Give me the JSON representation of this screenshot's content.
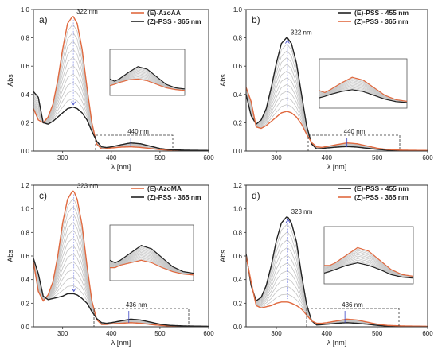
{
  "figure": {
    "colors": {
      "initial": "#e0693f",
      "final": "#222222",
      "intermediate": "#c4c4c4",
      "arrow": "#3b45c4"
    }
  },
  "chart_data": [
    {
      "type": "line",
      "panel_label": "a)",
      "xlabel": "λ [nm]",
      "ylabel": "Abs",
      "xlim": [
        240,
        600
      ],
      "ylim": [
        0,
        1.0
      ],
      "xticks": [
        "300",
        "400",
        "500",
        "600"
      ],
      "yticks": [
        "0.0",
        "0.2",
        "0.4",
        "0.6",
        "0.8",
        "1.0"
      ],
      "legend": "top-right",
      "peak_label": "322 nm",
      "peak_x": 322,
      "band_label": "440 nm",
      "band_x": 440,
      "n_intermediate": 10,
      "series": [
        {
          "name": "(E)-AzoAA",
          "role": "initial",
          "x": [
            240,
            250,
            260,
            270,
            280,
            290,
            300,
            310,
            320,
            322,
            330,
            340,
            350,
            360,
            370,
            380,
            390,
            400,
            420,
            440,
            460,
            480,
            500,
            520,
            550,
            600
          ],
          "values": [
            0.3,
            0.22,
            0.2,
            0.24,
            0.33,
            0.5,
            0.72,
            0.9,
            0.95,
            0.95,
            0.9,
            0.72,
            0.45,
            0.2,
            0.05,
            0.015,
            0.018,
            0.022,
            0.028,
            0.03,
            0.026,
            0.018,
            0.01,
            0.006,
            0.003,
            0.002
          ]
        },
        {
          "name": "(Z)-PSS - 365 nm",
          "role": "final",
          "x": [
            240,
            250,
            260,
            270,
            280,
            290,
            300,
            310,
            320,
            322,
            330,
            340,
            350,
            360,
            370,
            380,
            390,
            400,
            420,
            440,
            460,
            480,
            500,
            520,
            550,
            600
          ],
          "values": [
            0.42,
            0.38,
            0.2,
            0.19,
            0.21,
            0.24,
            0.27,
            0.3,
            0.31,
            0.31,
            0.3,
            0.27,
            0.22,
            0.14,
            0.07,
            0.03,
            0.025,
            0.03,
            0.045,
            0.058,
            0.052,
            0.035,
            0.018,
            0.01,
            0.006,
            0.004
          ]
        }
      ],
      "inset": {
        "xlim": [
          380,
          540
        ],
        "ylim": [
          0,
          0.09
        ]
      }
    },
    {
      "type": "line",
      "panel_label": "b)",
      "xlabel": "λ [nm]",
      "ylabel": "Abs",
      "xlim": [
        240,
        600
      ],
      "ylim": [
        0,
        1.0
      ],
      "xticks": [
        "300",
        "400",
        "500",
        "600"
      ],
      "yticks": [
        "0.0",
        "0.2",
        "0.4",
        "0.6",
        "0.8",
        "1.0"
      ],
      "legend": "top-right",
      "peak_label": "322 nm",
      "peak_x": 322,
      "band_label": "440 nm",
      "band_x": 440,
      "n_intermediate": 10,
      "series": [
        {
          "name": "(E)-PSS - 455 nm",
          "role": "final",
          "x": [
            240,
            250,
            260,
            270,
            280,
            290,
            300,
            310,
            320,
            322,
            330,
            340,
            350,
            360,
            370,
            380,
            390,
            400,
            420,
            440,
            460,
            480,
            500,
            520,
            550,
            600
          ],
          "values": [
            0.4,
            0.25,
            0.19,
            0.22,
            0.3,
            0.45,
            0.62,
            0.76,
            0.8,
            0.8,
            0.76,
            0.62,
            0.4,
            0.18,
            0.05,
            0.015,
            0.018,
            0.022,
            0.028,
            0.032,
            0.028,
            0.02,
            0.012,
            0.007,
            0.004,
            0.002
          ]
        },
        {
          "name": "(Z)-PSS - 365 nm",
          "role": "initial",
          "x": [
            240,
            250,
            260,
            270,
            280,
            290,
            300,
            310,
            320,
            322,
            330,
            340,
            350,
            360,
            370,
            380,
            390,
            400,
            420,
            440,
            460,
            480,
            500,
            520,
            550,
            600
          ],
          "values": [
            0.45,
            0.35,
            0.17,
            0.16,
            0.18,
            0.21,
            0.24,
            0.27,
            0.28,
            0.28,
            0.27,
            0.24,
            0.19,
            0.12,
            0.06,
            0.03,
            0.026,
            0.032,
            0.046,
            0.058,
            0.052,
            0.036,
            0.02,
            0.011,
            0.006,
            0.004
          ]
        }
      ],
      "inset": {
        "xlim": [
          380,
          540
        ],
        "ylim": [
          0,
          0.09
        ]
      }
    },
    {
      "type": "line",
      "panel_label": "c)",
      "xlabel": "λ [nm]",
      "ylabel": "Abs",
      "xlim": [
        240,
        600
      ],
      "ylim": [
        0,
        1.2
      ],
      "xticks": [
        "300",
        "400",
        "500",
        "600"
      ],
      "yticks": [
        "0.0",
        "0.2",
        "0.4",
        "0.6",
        "0.8",
        "1.0",
        "1.2"
      ],
      "legend": "top-right",
      "peak_label": "323 nm",
      "peak_x": 323,
      "band_label": "436 nm",
      "band_x": 436,
      "n_intermediate": 12,
      "series": [
        {
          "name": "(E)-AzoMA",
          "role": "initial",
          "x": [
            240,
            250,
            260,
            270,
            280,
            290,
            300,
            310,
            320,
            323,
            330,
            340,
            350,
            360,
            370,
            380,
            390,
            400,
            420,
            440,
            460,
            480,
            500,
            520,
            550,
            600
          ],
          "values": [
            0.55,
            0.3,
            0.22,
            0.27,
            0.38,
            0.6,
            0.88,
            1.08,
            1.15,
            1.15,
            1.08,
            0.86,
            0.52,
            0.22,
            0.06,
            0.02,
            0.02,
            0.025,
            0.03,
            0.035,
            0.03,
            0.02,
            0.012,
            0.007,
            0.004,
            0.002
          ]
        },
        {
          "name": "(Z)-PSS - 365 nm",
          "role": "final",
          "x": [
            240,
            250,
            260,
            270,
            280,
            290,
            300,
            310,
            320,
            323,
            330,
            340,
            350,
            360,
            370,
            380,
            390,
            400,
            420,
            440,
            460,
            480,
            500,
            520,
            550,
            600
          ],
          "values": [
            0.58,
            0.45,
            0.26,
            0.23,
            0.24,
            0.25,
            0.26,
            0.28,
            0.28,
            0.28,
            0.27,
            0.24,
            0.2,
            0.13,
            0.07,
            0.035,
            0.03,
            0.035,
            0.05,
            0.065,
            0.058,
            0.04,
            0.022,
            0.012,
            0.007,
            0.004
          ]
        }
      ],
      "inset": {
        "xlim": [
          380,
          540
        ],
        "ylim": [
          0,
          0.1
        ]
      }
    },
    {
      "type": "line",
      "panel_label": "d)",
      "xlabel": "λ [nm]",
      "ylabel": "Abs",
      "xlim": [
        240,
        600
      ],
      "ylim": [
        0,
        1.2
      ],
      "xticks": [
        "300",
        "400",
        "500",
        "600"
      ],
      "yticks": [
        "0.0",
        "0.2",
        "0.4",
        "0.6",
        "0.8",
        "1.0",
        "1.2"
      ],
      "legend": "top-right",
      "peak_label": "323 nm",
      "peak_x": 323,
      "band_label": "436 nm",
      "band_x": 436,
      "n_intermediate": 10,
      "series": [
        {
          "name": "(E)-PSS - 455 nm",
          "role": "final",
          "x": [
            240,
            250,
            260,
            270,
            280,
            290,
            300,
            310,
            320,
            323,
            330,
            340,
            350,
            360,
            370,
            380,
            390,
            400,
            420,
            440,
            460,
            480,
            500,
            520,
            550,
            600
          ],
          "values": [
            0.62,
            0.35,
            0.22,
            0.25,
            0.35,
            0.52,
            0.73,
            0.88,
            0.93,
            0.93,
            0.88,
            0.72,
            0.44,
            0.19,
            0.05,
            0.015,
            0.018,
            0.022,
            0.03,
            0.035,
            0.03,
            0.022,
            0.012,
            0.007,
            0.004,
            0.002
          ]
        },
        {
          "name": "(Z)-PSS - 365 nm",
          "role": "initial",
          "x": [
            240,
            250,
            260,
            270,
            280,
            290,
            300,
            310,
            320,
            323,
            330,
            340,
            350,
            360,
            370,
            380,
            390,
            400,
            420,
            440,
            460,
            480,
            500,
            520,
            550,
            600
          ],
          "values": [
            0.6,
            0.38,
            0.18,
            0.16,
            0.17,
            0.18,
            0.2,
            0.21,
            0.21,
            0.21,
            0.2,
            0.18,
            0.15,
            0.1,
            0.05,
            0.03,
            0.03,
            0.035,
            0.05,
            0.065,
            0.058,
            0.04,
            0.022,
            0.012,
            0.007,
            0.004
          ]
        }
      ],
      "inset": {
        "xlim": [
          380,
          540
        ],
        "ylim": [
          0,
          0.1
        ]
      }
    }
  ]
}
